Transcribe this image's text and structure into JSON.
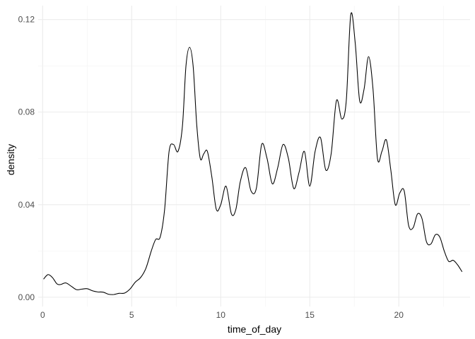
{
  "chart_data": {
    "type": "line",
    "title": "",
    "xlabel": "time_of_day",
    "ylabel": "density",
    "xlim": [
      -0.25,
      24
    ],
    "ylim": [
      -0.004,
      0.126
    ],
    "x_ticks": [
      0,
      5,
      10,
      15,
      20
    ],
    "x_tick_labels": [
      "0",
      "5",
      "10",
      "15",
      "20"
    ],
    "x_minor_ticks": [
      2.5,
      7.5,
      12.5,
      17.5,
      22.5
    ],
    "y_ticks": [
      0.0,
      0.04,
      0.08,
      0.12
    ],
    "y_tick_labels": [
      "0.00",
      "0.04",
      "0.08",
      "0.12"
    ],
    "y_minor_ticks": [
      0.02,
      0.06,
      0.1
    ],
    "grid": true,
    "legend": "none",
    "line_color": "#000000",
    "series": [
      {
        "x": [
          0.05,
          0.3,
          0.55,
          0.8,
          1.0,
          1.3,
          1.6,
          1.9,
          2.2,
          2.5,
          2.8,
          3.1,
          3.4,
          3.7,
          4.0,
          4.3,
          4.6,
          4.9,
          5.2,
          5.5,
          5.8,
          6.1,
          6.35,
          6.6,
          6.85,
          7.1,
          7.35,
          7.6,
          7.85,
          8.05,
          8.25,
          8.45,
          8.65,
          8.85,
          9.05,
          9.25,
          9.5,
          9.75,
          10.0,
          10.3,
          10.6,
          10.85,
          11.1,
          11.4,
          11.7,
          12.0,
          12.3,
          12.6,
          12.9,
          13.2,
          13.5,
          13.8,
          14.1,
          14.4,
          14.7,
          15.0,
          15.3,
          15.6,
          15.9,
          16.2,
          16.5,
          16.8,
          17.05,
          17.3,
          17.55,
          17.8,
          18.05,
          18.3,
          18.55,
          18.8,
          19.05,
          19.3,
          19.55,
          19.8,
          20.05,
          20.3,
          20.55,
          20.8,
          21.05,
          21.3,
          21.55,
          21.8,
          22.05,
          22.3,
          22.55,
          22.8,
          23.05,
          23.3,
          23.55
        ],
        "y": [
          0.0078,
          0.0098,
          0.0085,
          0.0058,
          0.0055,
          0.0062,
          0.0048,
          0.0033,
          0.0035,
          0.0037,
          0.0028,
          0.0023,
          0.0022,
          0.0013,
          0.0012,
          0.0017,
          0.0018,
          0.0035,
          0.0065,
          0.0085,
          0.0125,
          0.02,
          0.025,
          0.026,
          0.038,
          0.063,
          0.066,
          0.063,
          0.074,
          0.1,
          0.108,
          0.1,
          0.075,
          0.06,
          0.062,
          0.063,
          0.052,
          0.038,
          0.04,
          0.048,
          0.036,
          0.038,
          0.05,
          0.056,
          0.046,
          0.047,
          0.066,
          0.06,
          0.049,
          0.056,
          0.066,
          0.06,
          0.047,
          0.054,
          0.063,
          0.048,
          0.063,
          0.069,
          0.055,
          0.062,
          0.085,
          0.077,
          0.085,
          0.122,
          0.11,
          0.085,
          0.09,
          0.104,
          0.09,
          0.06,
          0.063,
          0.068,
          0.055,
          0.04,
          0.045,
          0.046,
          0.031,
          0.03,
          0.036,
          0.034,
          0.024,
          0.023,
          0.027,
          0.026,
          0.02,
          0.0155,
          0.016,
          0.014,
          0.011
        ]
      }
    ]
  }
}
